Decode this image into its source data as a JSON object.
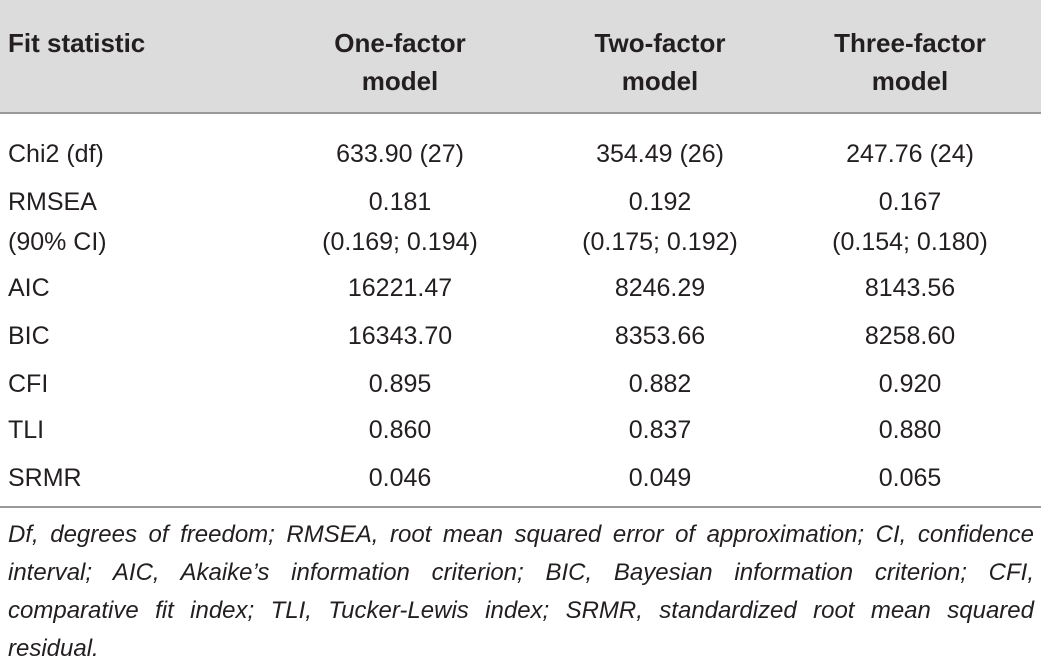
{
  "table": {
    "headers": {
      "col0": "Fit statistic",
      "col1_line1": "One-factor",
      "col1_line2": "model",
      "col2_line1": "Two-factor",
      "col2_line2": "model",
      "col3_line1": "Three-factor",
      "col3_line2": "model"
    },
    "rows": [
      {
        "label": "Chi2 (df)",
        "v1": "633.90 (27)",
        "v2": "354.49 (26)",
        "v3": "247.76 (24)"
      },
      {
        "label": "RMSEA",
        "label2": "(90% CI)",
        "v1": "0.181",
        "v1b": "(0.169; 0.194)",
        "v2": "0.192",
        "v2b": "(0.175; 0.192)",
        "v3": "0.167",
        "v3b": "(0.154; 0.180)"
      },
      {
        "label": "AIC",
        "v1": "16221.47",
        "v2": "8246.29",
        "v3": "8143.56"
      },
      {
        "label": "BIC",
        "v1": "16343.70",
        "v2": "8353.66",
        "v3": "8258.60"
      },
      {
        "label": "CFI",
        "v1": "0.895",
        "v2": "0.882",
        "v3": "0.920"
      },
      {
        "label": "TLI",
        "v1": "0.860",
        "v2": "0.837",
        "v3": "0.880"
      },
      {
        "label": "SRMR",
        "v1": "0.046",
        "v2": "0.049",
        "v3": "0.065"
      }
    ],
    "footnote": "Df, degrees of freedom; RMSEA, root mean squared error of approximation; CI, confidence interval; AIC, Akaike’s information criterion; BIC, Bayesian information criterion; CFI, comparative fit index; TLI, Tucker-Lewis index; SRMR, standardized root mean squared residual."
  }
}
